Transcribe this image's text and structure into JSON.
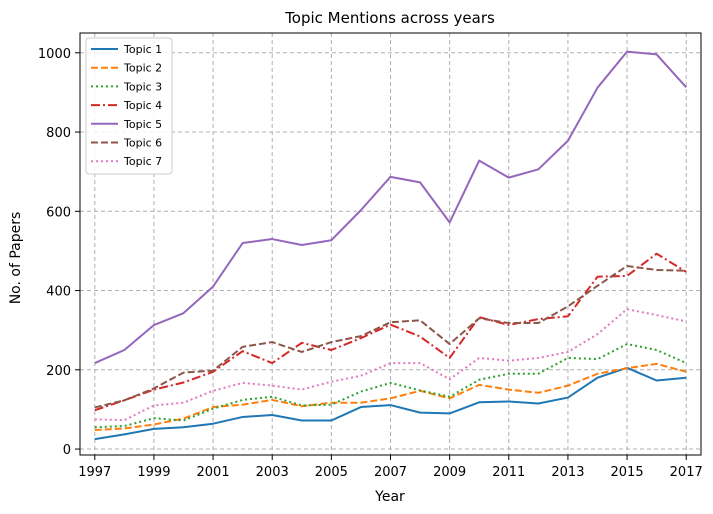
{
  "chart_data": {
    "type": "line",
    "title": "Topic Mentions across years",
    "xlabel": "Year",
    "ylabel": "No. of Papers",
    "xlim": [
      1996.5,
      2017.5
    ],
    "ylim": [
      -15,
      1050
    ],
    "x_ticks": [
      1997,
      1999,
      2001,
      2003,
      2005,
      2007,
      2009,
      2011,
      2013,
      2015,
      2017
    ],
    "y_ticks": [
      0,
      200,
      400,
      600,
      800,
      1000
    ],
    "grid": true,
    "legend_position": "top-left",
    "x": [
      1997,
      1998,
      1999,
      2000,
      2001,
      2002,
      2003,
      2004,
      2005,
      2006,
      2007,
      2008,
      2009,
      2010,
      2011,
      2012,
      2013,
      2014,
      2015,
      2016,
      2017
    ],
    "series": [
      {
        "name": "Topic 1",
        "color": "#1f77b4",
        "dash": "solid",
        "values": [
          25,
          37,
          51,
          55,
          64,
          81,
          86,
          72,
          72,
          106,
          111,
          92,
          90,
          118,
          120,
          115,
          130,
          180,
          205,
          173,
          180
        ]
      },
      {
        "name": "Topic 2",
        "color": "#ff7f0e",
        "dash": "dashed",
        "values": [
          48,
          52,
          62,
          77,
          106,
          112,
          124,
          108,
          117,
          117,
          128,
          147,
          128,
          162,
          150,
          142,
          160,
          190,
          204,
          215,
          195
        ]
      },
      {
        "name": "Topic 3",
        "color": "#2ca02c",
        "dash": "dotted",
        "values": [
          55,
          58,
          78,
          72,
          102,
          124,
          132,
          110,
          112,
          145,
          167,
          148,
          132,
          175,
          190,
          190,
          230,
          227,
          265,
          250,
          217
        ]
      },
      {
        "name": "Topic 4",
        "color": "#d62728",
        "dash": "dashdot",
        "values": [
          98,
          123,
          150,
          168,
          195,
          247,
          217,
          268,
          250,
          280,
          314,
          284,
          230,
          333,
          313,
          328,
          335,
          435,
          437,
          493,
          447
        ]
      },
      {
        "name": "Topic 5",
        "color": "#9467bd",
        "dash": "solid",
        "values": [
          217,
          250,
          313,
          343,
          410,
          520,
          530,
          515,
          527,
          603,
          687,
          673,
          572,
          728,
          685,
          706,
          778,
          912,
          1003,
          996,
          913
        ]
      },
      {
        "name": "Topic 6",
        "color": "#8c564b",
        "dash": "dashed",
        "values": [
          105,
          123,
          153,
          193,
          198,
          258,
          270,
          245,
          270,
          285,
          320,
          325,
          265,
          330,
          318,
          318,
          360,
          412,
          462,
          452,
          450
        ]
      },
      {
        "name": "Topic 7",
        "color": "#e377c2",
        "dash": "dotted",
        "values": [
          75,
          73,
          110,
          117,
          147,
          167,
          160,
          150,
          170,
          185,
          217,
          217,
          176,
          230,
          223,
          230,
          245,
          290,
          353,
          338,
          322
        ]
      }
    ]
  }
}
